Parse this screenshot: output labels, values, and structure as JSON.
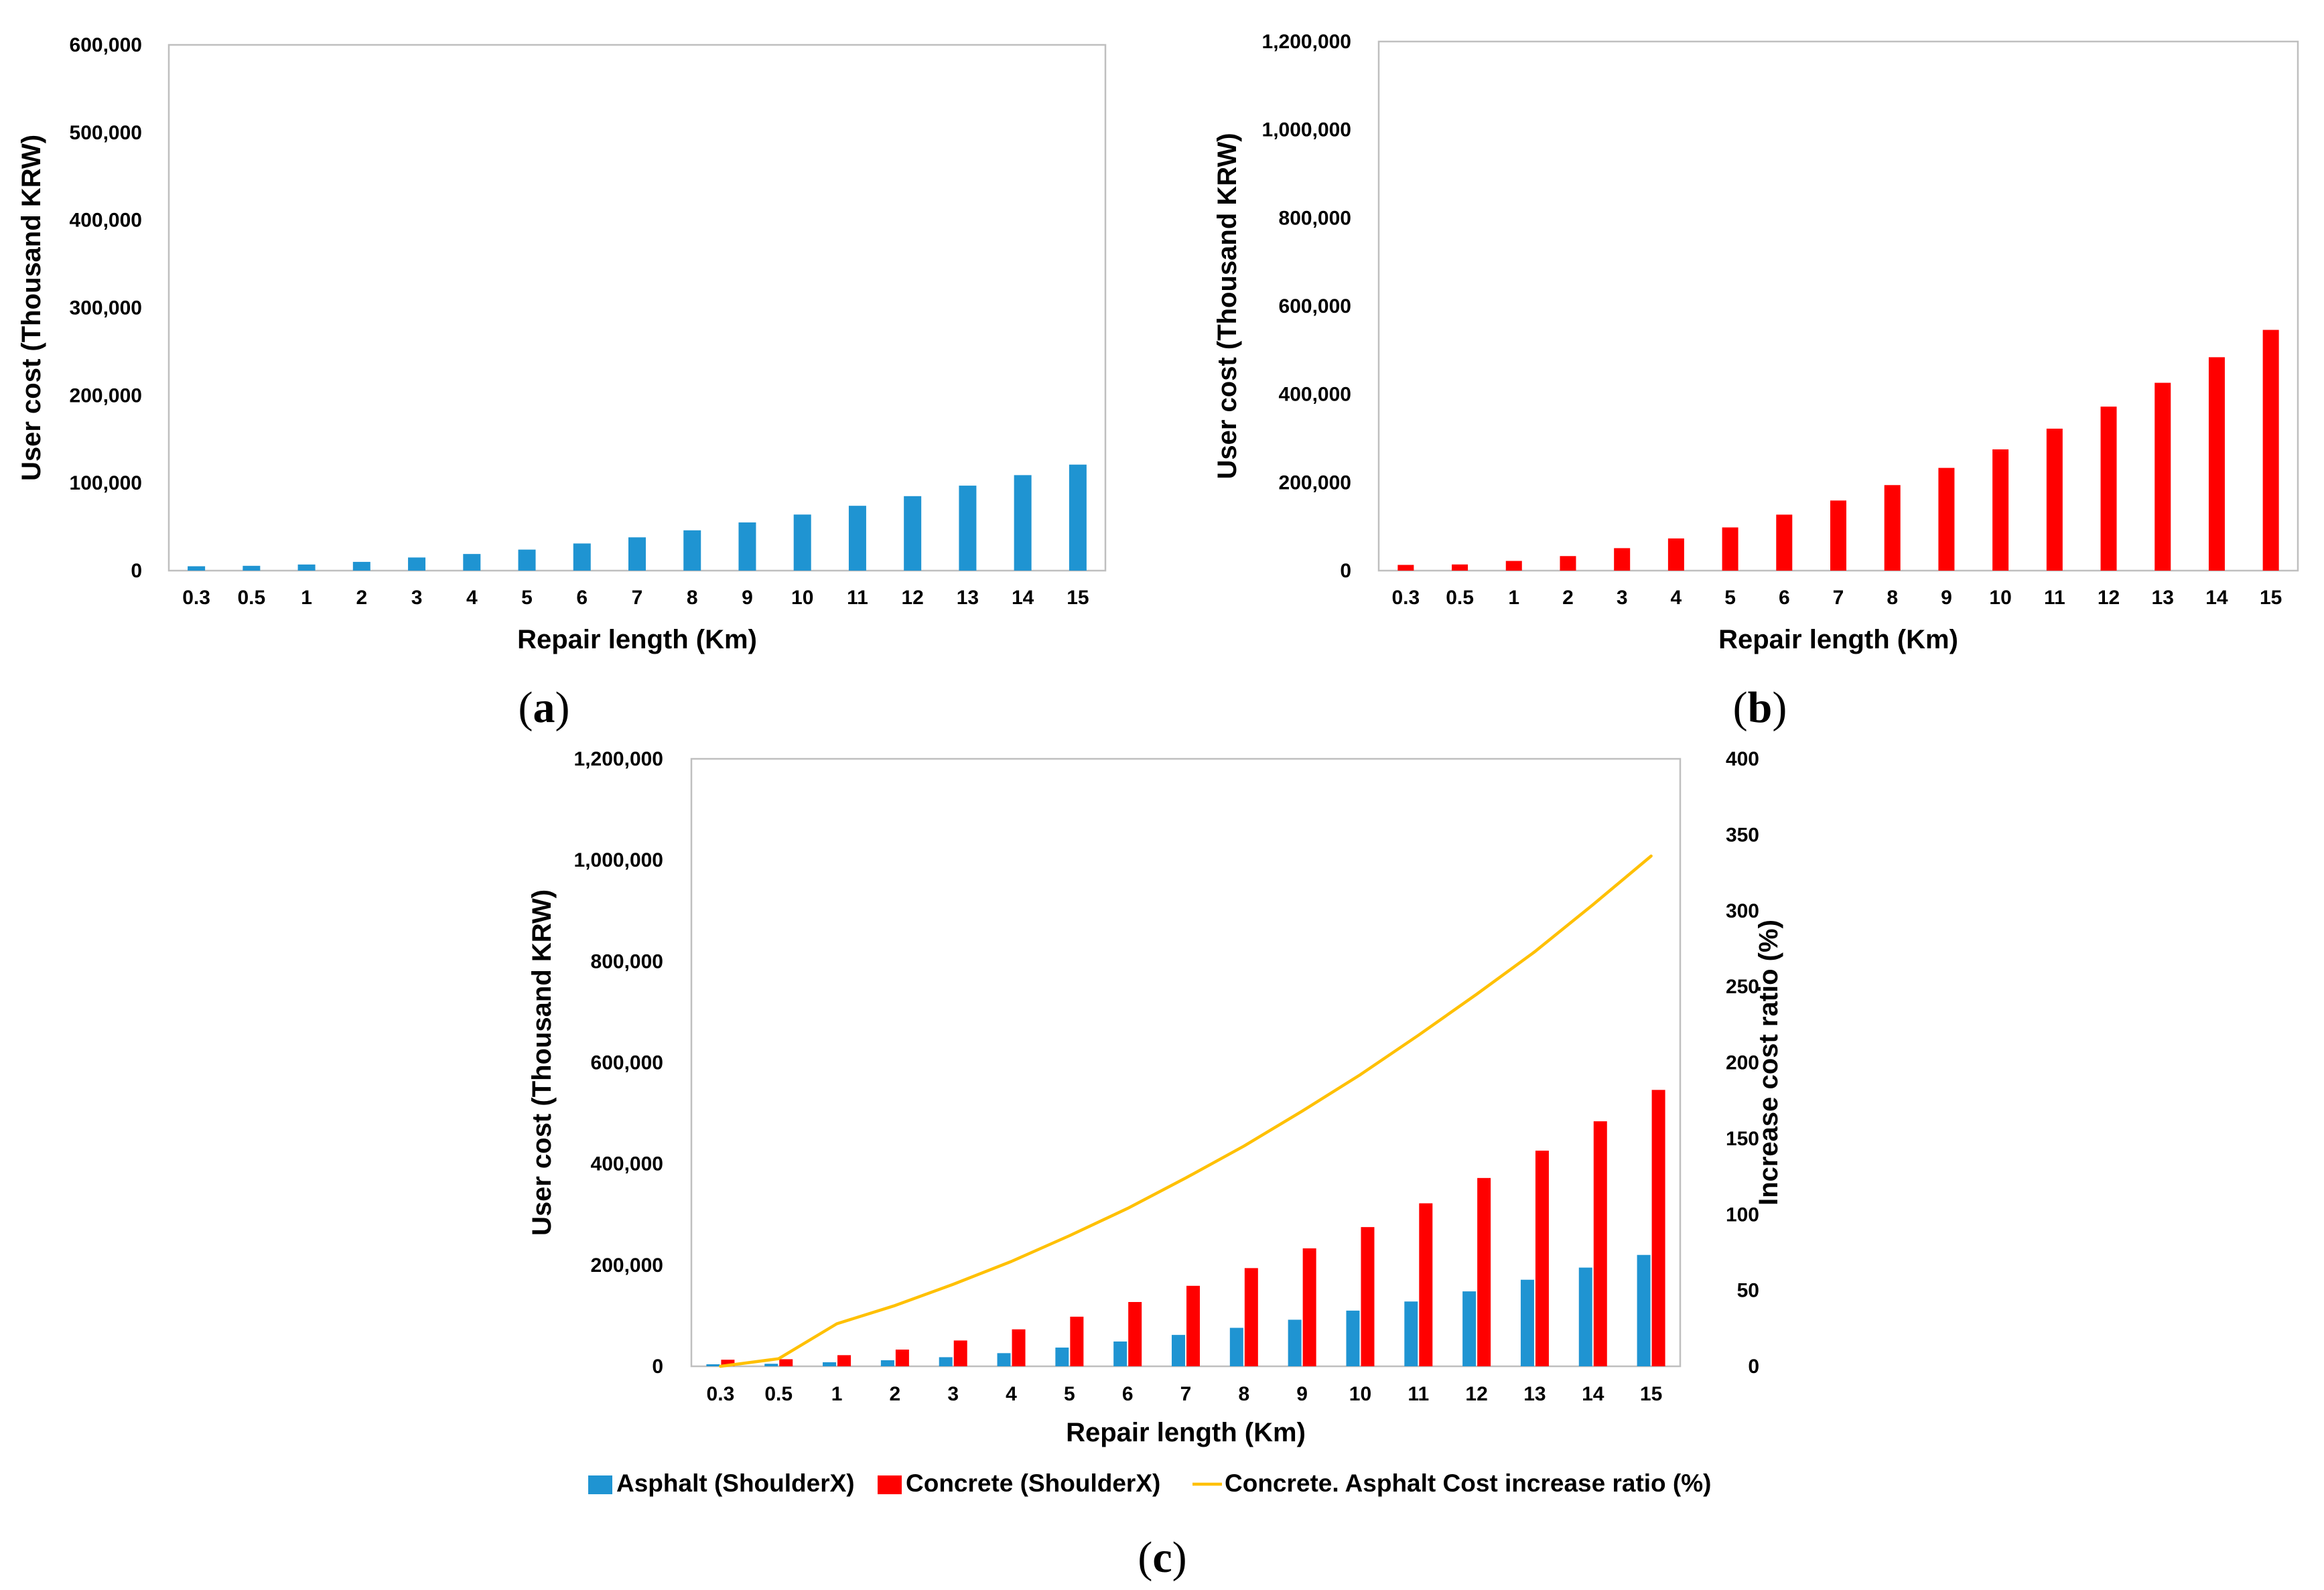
{
  "chart_data": [
    {
      "panel": "a",
      "panel_label": "a",
      "type": "bar",
      "categories": [
        "0.3",
        "0.5",
        "1",
        "2",
        "3",
        "4",
        "5",
        "6",
        "7",
        "8",
        "9",
        "10",
        "11",
        "12",
        "13",
        "14",
        "15"
      ],
      "series": [
        {
          "name": "Asphalt (ShoulderX)",
          "color": "#1f94d2",
          "values": [
            5000,
            5500,
            7000,
            10000,
            15000,
            19000,
            24000,
            31000,
            38000,
            46000,
            55000,
            64000,
            74000,
            85000,
            97000,
            109000,
            121000
          ]
        }
      ],
      "xlabel": "Repair length (Km)",
      "ylabel": "User cost (Thousand KRW)",
      "ylim": [
        0,
        600000
      ],
      "yticks": [
        0,
        100000,
        200000,
        300000,
        400000,
        500000,
        600000
      ],
      "ytick_labels": [
        "0",
        "100,000",
        "200,000",
        "300,000",
        "400,000",
        "500,000",
        "600,000"
      ]
    },
    {
      "panel": "b",
      "panel_label": "b",
      "type": "bar",
      "categories": [
        "0.3",
        "0.5",
        "1",
        "2",
        "3",
        "4",
        "5",
        "6",
        "7",
        "8",
        "9",
        "10",
        "11",
        "12",
        "13",
        "14",
        "15"
      ],
      "series": [
        {
          "name": "Concrete (ShoulderX)",
          "color": "#ff0000",
          "values": [
            13000,
            14000,
            22000,
            33000,
            51000,
            73000,
            98000,
            127000,
            159000,
            194000,
            233000,
            275000,
            322000,
            372000,
            426000,
            484000,
            546000
          ]
        }
      ],
      "xlabel": "Repair length (Km)",
      "ylabel": "User cost (Thousand KRW)",
      "ylim": [
        0,
        1200000
      ],
      "yticks": [
        0,
        200000,
        400000,
        600000,
        800000,
        1000000,
        1200000
      ],
      "ytick_labels": [
        "0",
        "200,000",
        "400,000",
        "600,000",
        "800,000",
        "1,000,000",
        "1,200,000"
      ]
    },
    {
      "panel": "c",
      "panel_label": "c",
      "type": "bar",
      "categories": [
        "0.3",
        "0.5",
        "1",
        "2",
        "3",
        "4",
        "5",
        "6",
        "7",
        "8",
        "9",
        "10",
        "11",
        "12",
        "13",
        "14",
        "15"
      ],
      "series": [
        {
          "name": "Asphalt (ShoulderX)",
          "color": "#1f94d2",
          "axis": "left",
          "values": [
            4000,
            5000,
            8000,
            12000,
            18000,
            26000,
            37000,
            49000,
            62000,
            76000,
            92000,
            110000,
            128000,
            148000,
            171000,
            195000,
            220000
          ]
        },
        {
          "name": "Concrete (ShoulderX)",
          "color": "#ff0000",
          "axis": "left",
          "values": [
            13000,
            14000,
            22000,
            33000,
            51000,
            73000,
            98000,
            127000,
            159000,
            194000,
            233000,
            275000,
            322000,
            372000,
            426000,
            484000,
            546000
          ]
        },
        {
          "name": "Concrete. Asphalt Cost increase ratio (%)",
          "color": "#ffc000",
          "axis": "right",
          "type": "line",
          "values": [
            0,
            5,
            28,
            40,
            54,
            69,
            86,
            104,
            124,
            145,
            168,
            192,
            218,
            245,
            273,
            304,
            336
          ]
        }
      ],
      "xlabel": "Repair length (Km)",
      "ylabel": "User cost (Thousand KRW)",
      "y2label": "Increase cost ratio (%)",
      "ylim": [
        0,
        1200000
      ],
      "y2lim": [
        0,
        400
      ],
      "yticks": [
        0,
        200000,
        400000,
        600000,
        800000,
        1000000,
        1200000
      ],
      "ytick_labels": [
        "0",
        "200,000",
        "400,000",
        "600,000",
        "800,000",
        "1,000,000",
        "1,200,000"
      ],
      "y2ticks": [
        0,
        50,
        100,
        150,
        200,
        250,
        300,
        350,
        400
      ],
      "y2tick_labels": [
        "0",
        "50",
        "100",
        "150",
        "200",
        "250",
        "300",
        "350",
        "400"
      ],
      "legend": [
        {
          "label": "Asphalt (ShoulderX)",
          "kind": "bar",
          "color": "#1f94d2"
        },
        {
          "label": "Concrete (ShoulderX)",
          "kind": "bar",
          "color": "#ff0000"
        },
        {
          "label": "Concrete. Asphalt Cost increase ratio (%)",
          "kind": "line",
          "color": "#ffc000"
        }
      ],
      "legend_position": "bottom"
    }
  ]
}
